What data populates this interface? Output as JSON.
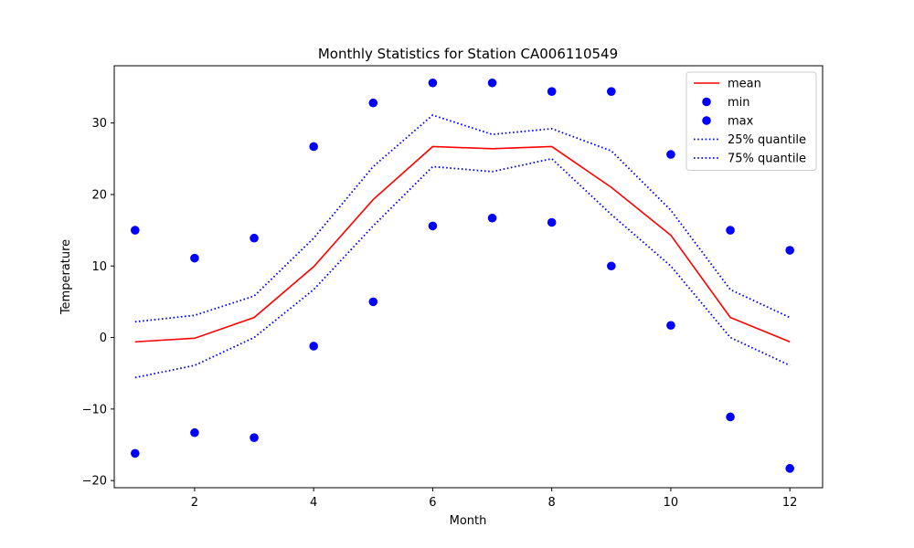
{
  "chart_data": {
    "type": "line",
    "title": "Monthly Statistics for Station CA006110549",
    "xlabel": "Month",
    "ylabel": "Temperature",
    "xlim": [
      0.65,
      12.55
    ],
    "ylim": [
      -21,
      38
    ],
    "x_ticks": [
      2,
      4,
      6,
      8,
      10,
      12
    ],
    "y_ticks": [
      -20,
      -10,
      0,
      10,
      20,
      30
    ],
    "x_tick_labels": [
      "2",
      "4",
      "6",
      "8",
      "10",
      "12"
    ],
    "y_tick_labels": [
      "−20",
      "−10",
      "0",
      "10",
      "20",
      "30"
    ],
    "grid": false,
    "legend_position": "top-right",
    "x": [
      1,
      2,
      3,
      4,
      5,
      6,
      7,
      8,
      9,
      10,
      11,
      12
    ],
    "series": [
      {
        "name": "mean",
        "kind": "line",
        "style": "solid",
        "color": "#ff0000",
        "values": [
          -0.6,
          -0.1,
          2.8,
          9.9,
          19.3,
          26.7,
          26.4,
          26.7,
          21.0,
          14.3,
          2.8,
          -0.6
        ]
      },
      {
        "name": "min",
        "kind": "scatter",
        "color": "#0000ff",
        "values": [
          -16.2,
          -13.3,
          -14.0,
          -1.2,
          5.0,
          15.6,
          16.7,
          16.1,
          10.0,
          1.7,
          -11.1,
          -18.3
        ]
      },
      {
        "name": "max",
        "kind": "scatter",
        "color": "#0000ff",
        "values": [
          15.0,
          11.1,
          13.9,
          26.7,
          32.8,
          35.6,
          35.6,
          34.4,
          34.4,
          25.6,
          15.0,
          12.2
        ]
      },
      {
        "name": "25% quantile",
        "kind": "line",
        "style": "dotted",
        "color": "#0000ff",
        "values": [
          -5.6,
          -3.9,
          0.0,
          6.7,
          15.6,
          23.9,
          23.2,
          25.0,
          17.2,
          10.0,
          0.0,
          -3.9
        ]
      },
      {
        "name": "75% quantile",
        "kind": "line",
        "style": "dotted",
        "color": "#0000ff",
        "values": [
          2.2,
          3.1,
          5.8,
          13.9,
          23.9,
          31.1,
          28.4,
          29.2,
          26.1,
          17.8,
          6.7,
          2.8
        ]
      }
    ]
  }
}
